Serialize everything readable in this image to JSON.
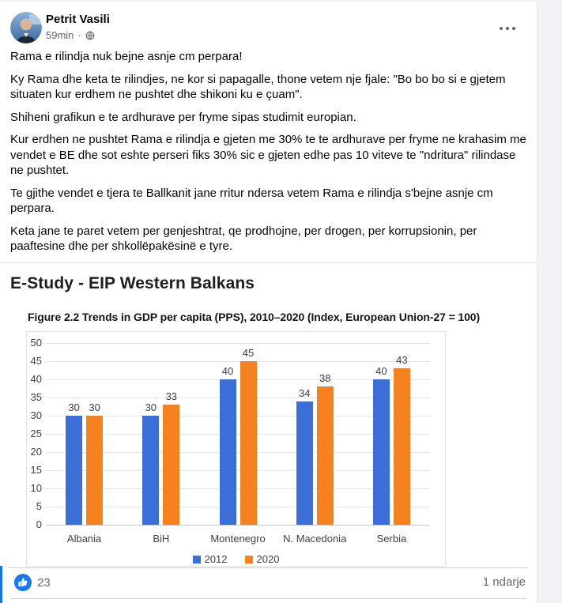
{
  "header": {
    "author": "Petrit Vasili",
    "timestamp": "59min",
    "separator": "·",
    "privacy_icon": "globe-icon",
    "menu_icon": "ellipsis-icon"
  },
  "post": {
    "paragraphs": [
      "Rama e rilindja nuk bejne asnje cm perpara!",
      "Ky Rama dhe keta te rilindjes, ne kor si papagalle, thone vetem nje fjale: \"Bo bo bo si e gjetem situaten kur erdhem ne pushtet dhe shikoni ku e çuam\".",
      "Shiheni grafikun e te ardhurave per fryme sipas studimit europian.",
      "Kur erdhen ne pushtet Rama e rilindja e gjeten me 30% te te ardhurave per fryme ne krahasim me vendet e BE dhe sot eshte perseri fiks 30% sic e gjeten edhe pas 10 viteve te \"ndritura\" rilindase ne pushtet.",
      "Te gjithe vendet e tjera te Ballkanit jane rritur ndersa vetem Rama e rilindja s'bejne asnje cm perpara.",
      "Keta jane te paret vetem per genjeshtrat, qe prodhojne, per drogen, per korrupsionin, per paaftesine dhe per shkollëpakësinë e tyre."
    ]
  },
  "attachment": {
    "title": "E-Study - EIP Western Balkans"
  },
  "chart_data": {
    "type": "bar",
    "title": "Figure 2.2 Trends in GDP per capita (PPS), 2010–2020 (Index, European Union-27 = 100)",
    "categories": [
      "Albania",
      "BiH",
      "Montenegro",
      "N. Macedonia",
      "Serbia"
    ],
    "series": [
      {
        "name": "2012",
        "color": "#3a6fd8",
        "values": [
          30,
          30,
          40,
          34,
          40
        ]
      },
      {
        "name": "2020",
        "color": "#f6821f",
        "values": [
          30,
          33,
          45,
          38,
          43
        ]
      }
    ],
    "ylim": [
      0,
      50
    ],
    "ytick_step": 5,
    "grid": true,
    "legend_position": "bottom"
  },
  "footer": {
    "like_count": "23",
    "like_icon": "thumbs-up-icon",
    "shares": "1 ndarje"
  },
  "colors": {
    "accent_blue": "#1877f2",
    "page_bg": "#f0f2f5",
    "card_bg": "#ffffff",
    "text": "#050505",
    "muted": "#65676b",
    "bar_2012": "#3a6fd8",
    "bar_2020": "#f6821f"
  }
}
